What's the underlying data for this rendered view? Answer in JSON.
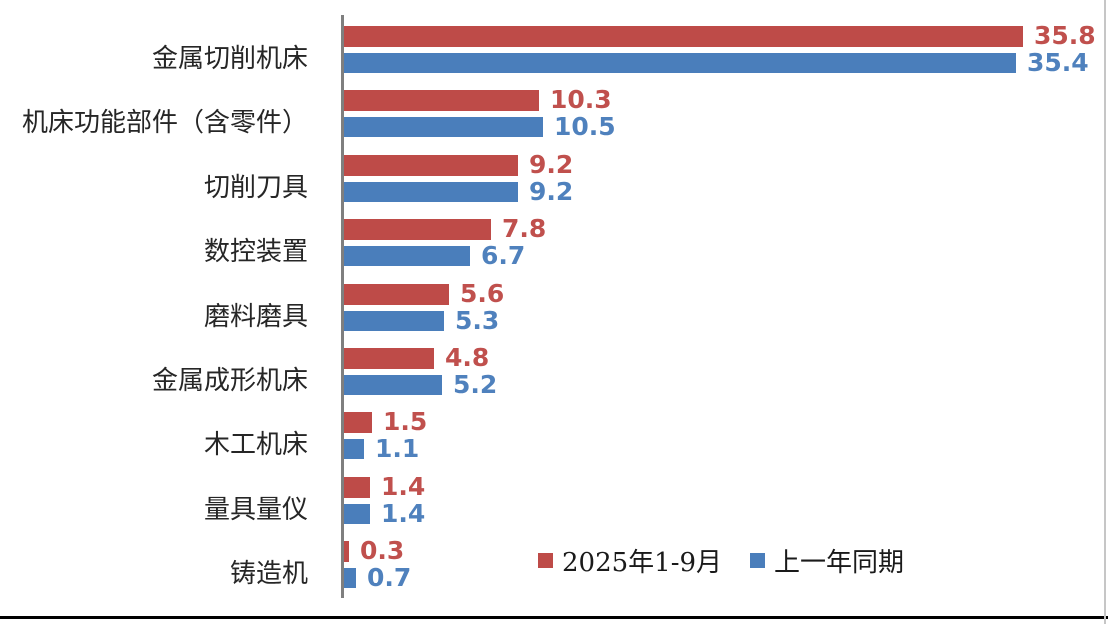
{
  "chart_data": {
    "type": "bar",
    "orientation": "horizontal",
    "title": "",
    "categories": [
      "金属切削机床",
      "机床功能部件（含零件）",
      "切削刀具",
      "数控装置",
      "磨料磨具",
      "金属成形机床",
      "木工机床",
      "量具量仪",
      "铸造机"
    ],
    "series": [
      {
        "name": "2025年1-9月",
        "color": "#be4b48",
        "label_color": "#c0504d",
        "values": [
          35.8,
          10.3,
          9.2,
          7.8,
          5.6,
          4.8,
          1.5,
          1.4,
          0.3
        ]
      },
      {
        "name": "上一年同期",
        "color": "#4a7ebb",
        "label_color": "#4f81bd",
        "values": [
          35.4,
          10.5,
          9.2,
          6.7,
          5.3,
          5.2,
          1.1,
          1.4,
          0.7
        ]
      }
    ],
    "value_labels": "shown, one decimal, right of each bar",
    "xlim": [
      0,
      40
    ],
    "grid": false,
    "legend_position": "bottom-center",
    "axis_line_color": "#7f7f7f"
  },
  "frame": {
    "bottom_border_color": "#000000",
    "right_border_color": "#c6c6c6"
  }
}
